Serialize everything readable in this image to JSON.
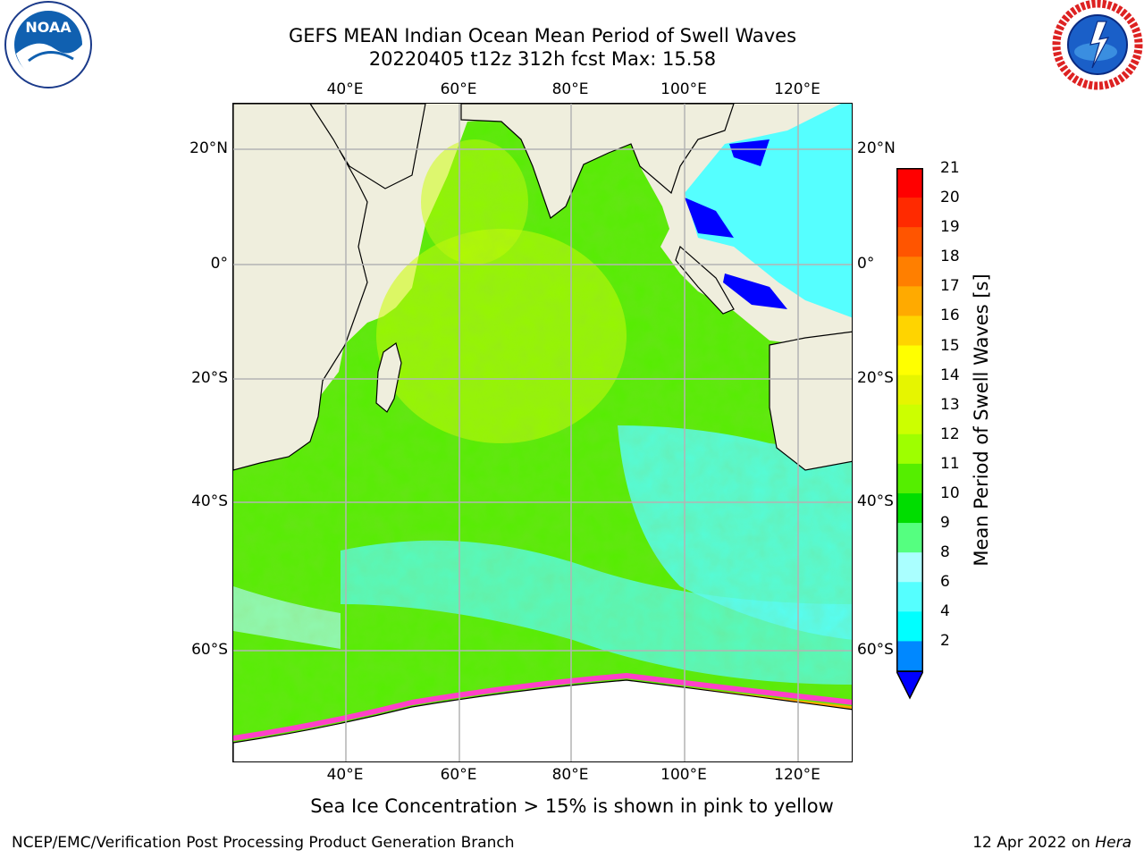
{
  "header": {
    "title_line1": "GEFS MEAN Indian Ocean Mean Period of Swell Waves",
    "title_line2": "20220405 t12z 312h fcst   Max: 15.58"
  },
  "map": {
    "lon_labels": [
      "40°E",
      "60°E",
      "80°E",
      "100°E",
      "120°E"
    ],
    "lat_labels": [
      "20°N",
      "0°",
      "20°S",
      "40°S",
      "60°S"
    ],
    "colors": {
      "land": "#efeedd",
      "grid": "#b4b4b4",
      "coast": "#000000",
      "sea_ice": "#ff40c8",
      "shelf_ice": "#ffffff"
    }
  },
  "colorbar": {
    "title": "Mean Period of Swell Waves [s]",
    "labels": [
      "21",
      "20",
      "19",
      "18",
      "17",
      "16",
      "15",
      "14",
      "13",
      "12",
      "11",
      "10",
      "9",
      "8",
      "6",
      "4",
      "2"
    ],
    "colors": [
      "#ff0000",
      "#ff2a00",
      "#ff5500",
      "#ff7f00",
      "#ffaa00",
      "#ffd400",
      "#ffff00",
      "#e6f500",
      "#ccff00",
      "#9eff00",
      "#55ee00",
      "#00dd00",
      "#55ff80",
      "#aaffff",
      "#55ffff",
      "#00ffff",
      "#0088ff"
    ],
    "extend_low_color": "#0000ff"
  },
  "caption": "Sea Ice Concentration > 15% is shown in pink to yellow",
  "footer": {
    "left": "NCEP/EMC/Verification Post Processing Product Generation Branch",
    "date": "12 Apr 2022 on ",
    "host": "Hera"
  }
}
